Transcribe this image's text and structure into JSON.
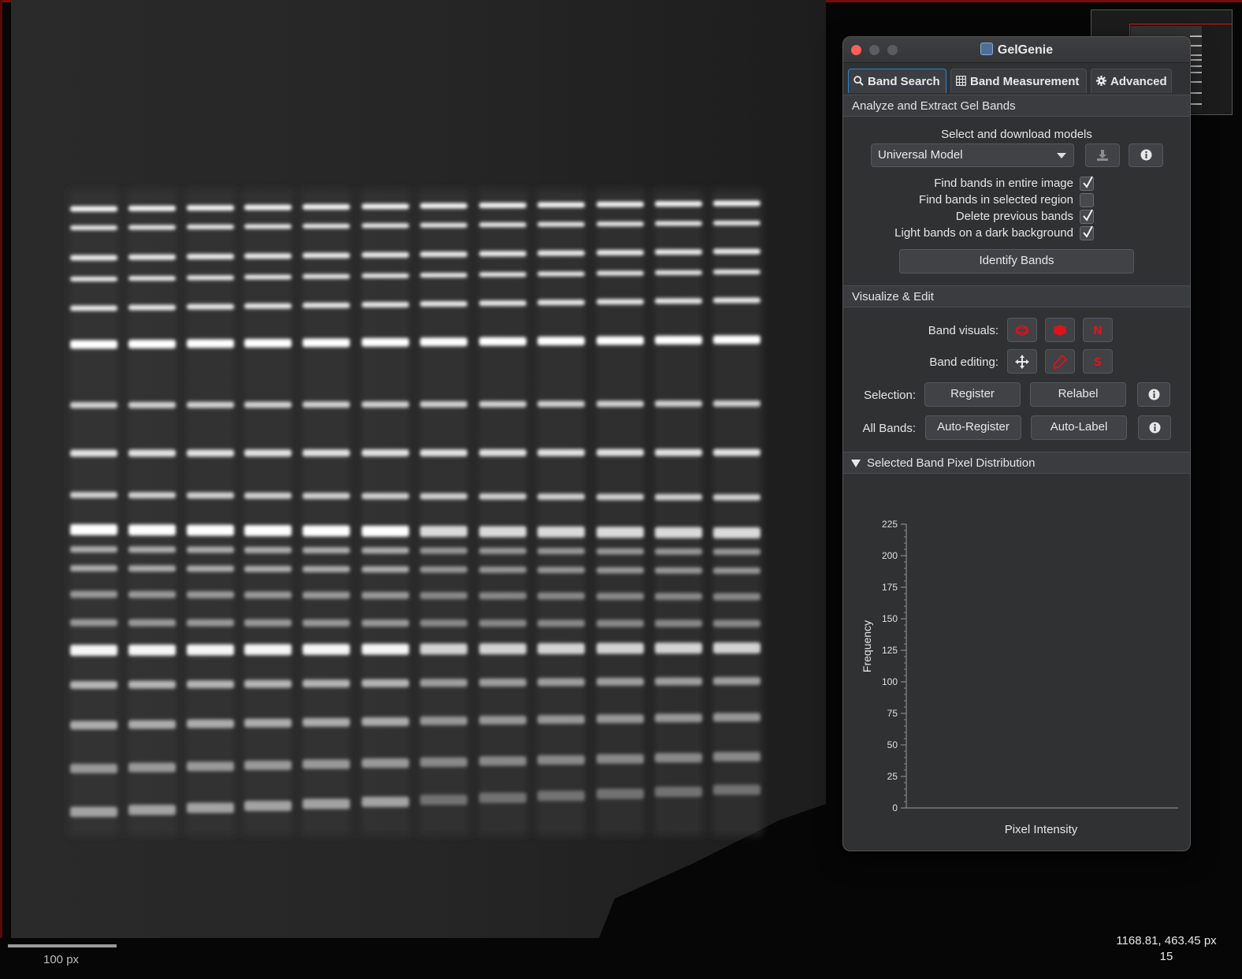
{
  "viewer": {
    "scalebar_label": "100 px",
    "cursor_coords": "1168.81, 463.45 px",
    "cursor_value": "15"
  },
  "window": {
    "title": "GelGenie",
    "tabs": [
      {
        "label": "Band Search",
        "icon": "search-icon",
        "active": true
      },
      {
        "label": "Band Measurement",
        "icon": "table-icon",
        "active": false
      },
      {
        "label": "Advanced",
        "icon": "gear-icon",
        "active": false
      }
    ],
    "analyze": {
      "header": "Analyze and Extract Gel Bands",
      "models_label": "Select and download models",
      "model_selected": "Universal Model",
      "options": [
        {
          "label": "Find bands in entire image",
          "checked": true
        },
        {
          "label": "Find bands in selected region",
          "checked": false
        },
        {
          "label": "Delete previous bands",
          "checked": true
        },
        {
          "label": "Light bands on a dark background",
          "checked": true
        }
      ],
      "identify_button": "Identify Bands"
    },
    "visualize": {
      "header": "Visualize & Edit",
      "band_visuals_label": "Band visuals:",
      "band_editing_label": "Band editing:",
      "selection_label": "Selection:",
      "register_button": "Register",
      "relabel_button": "Relabel",
      "all_bands_label": "All Bands:",
      "auto_register_button": "Auto-Register",
      "auto_label_button": "Auto-Label",
      "icon_red": "#e0121c"
    },
    "distribution": {
      "header": "Selected Band Pixel Distribution"
    }
  },
  "chart_data": {
    "type": "bar",
    "title": "",
    "xlabel": "Pixel Intensity",
    "ylabel": "Frequency",
    "ylim": [
      0,
      225
    ],
    "yticks": [
      0,
      25,
      50,
      75,
      100,
      125,
      150,
      175,
      200,
      225
    ],
    "series": [],
    "grid": false
  }
}
